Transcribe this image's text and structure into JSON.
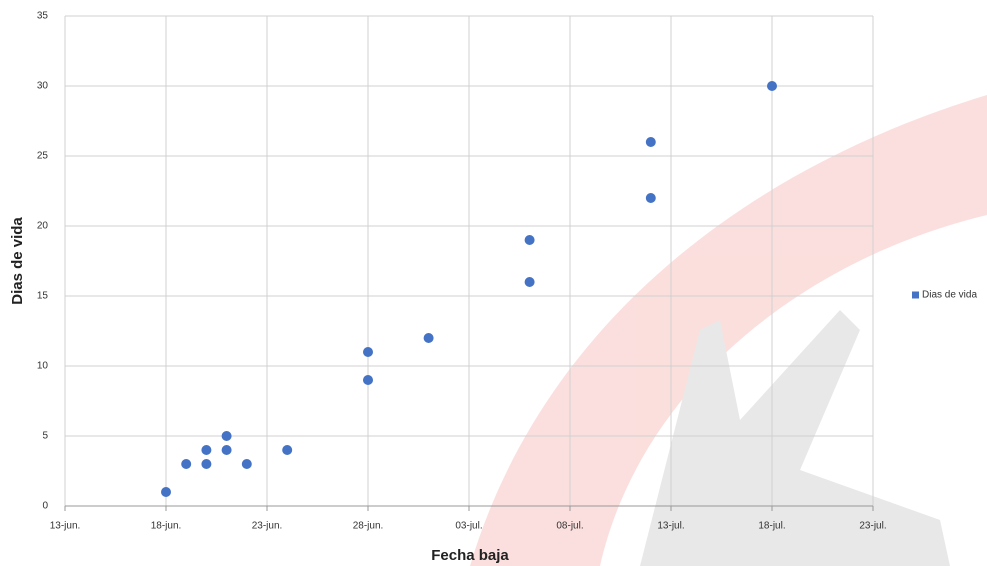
{
  "chart_data": {
    "type": "scatter",
    "x_label": "Fecha baja",
    "y_label": "Dias de vida",
    "series": [
      {
        "name": "Dias de vida",
        "color": "#4472c4",
        "x": [
          5,
          6,
          7,
          7,
          8,
          8,
          9,
          11,
          15,
          15,
          18,
          23,
          23,
          29,
          29,
          35
        ],
        "values": [
          1,
          3,
          4,
          3,
          5,
          4,
          3,
          4,
          11,
          9,
          12,
          19,
          16,
          26,
          22,
          30
        ]
      }
    ],
    "xlim": [
      0,
      40
    ],
    "xticks": [
      {
        "value": 0,
        "label": "13-jun."
      },
      {
        "value": 5,
        "label": "18-jun."
      },
      {
        "value": 10,
        "label": "23-jun."
      },
      {
        "value": 15,
        "label": "28-jun."
      },
      {
        "value": 20,
        "label": "03-jul."
      },
      {
        "value": 25,
        "label": "08-jul."
      },
      {
        "value": 30,
        "label": "13-jul."
      },
      {
        "value": 35,
        "label": "18-jul."
      },
      {
        "value": 40,
        "label": "23-jul."
      }
    ],
    "ylim": [
      0,
      35
    ],
    "yticks": [
      0,
      5,
      10,
      15,
      20,
      25,
      30,
      35
    ],
    "grid": true,
    "legend": "right"
  }
}
